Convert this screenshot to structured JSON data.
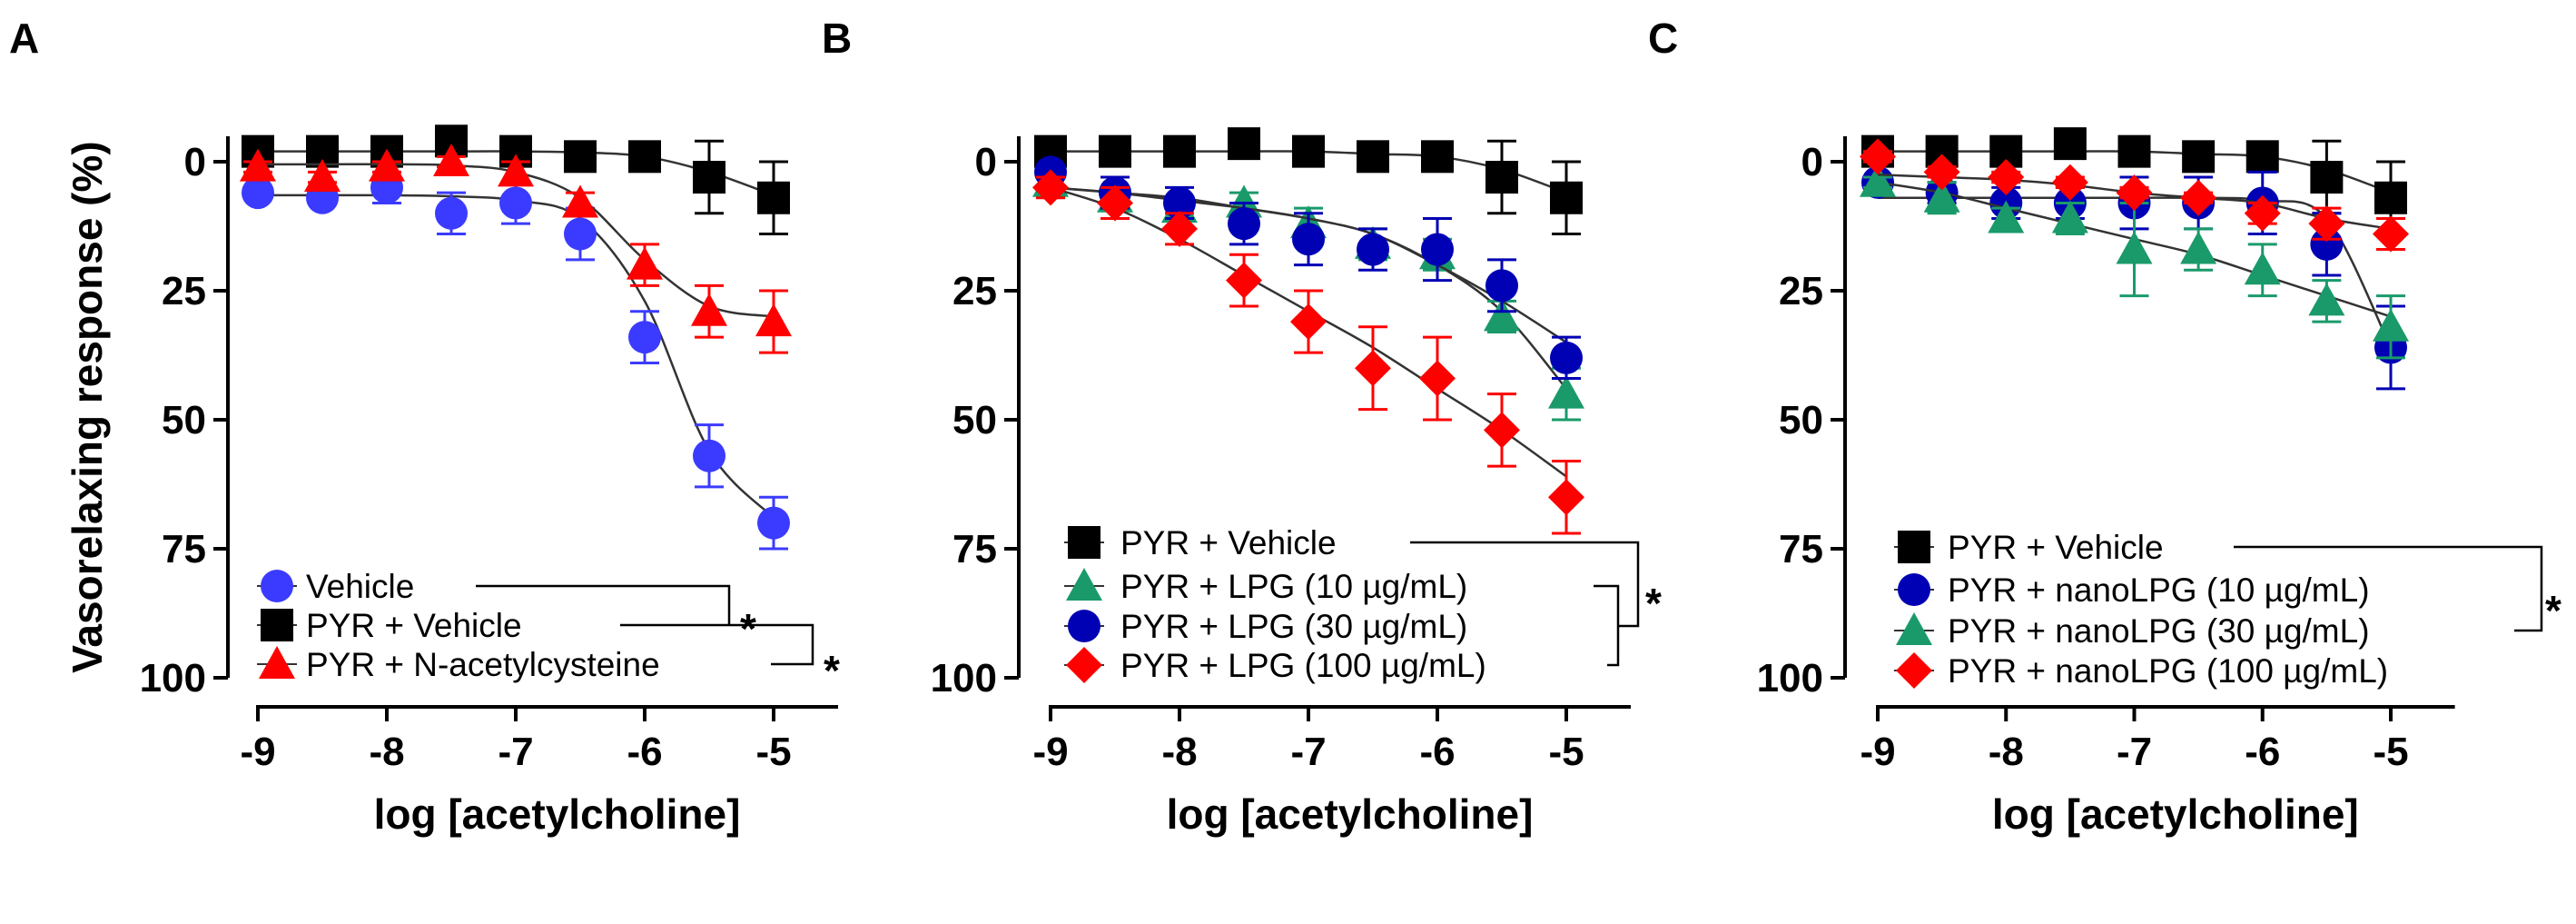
{
  "chart_data": [
    {
      "type": "line",
      "panel_label": "A",
      "xlabel": "log [acetylcholine]",
      "ylabel": "Vasorelaxing response (%)",
      "x": [
        -9,
        -8.5,
        -8,
        -7.5,
        -7,
        -6.5,
        -6,
        -5.5,
        -5
      ],
      "xticks": [
        "-9",
        "-8",
        "-7",
        "-6",
        "-5"
      ],
      "yticks": [
        "0",
        "25",
        "50",
        "75",
        "100"
      ],
      "ylim": [
        0,
        100
      ],
      "y_inverted": true,
      "legend_position": "bottom-left",
      "significance": [
        "*",
        "*"
      ],
      "series": [
        {
          "name": "Vehicle",
          "marker": "circle",
          "color": "#3b3bff",
          "values": [
            6,
            7,
            5,
            10,
            8,
            14,
            34,
            57,
            70
          ],
          "errors": [
            1,
            1,
            3,
            4,
            4,
            5,
            5,
            6,
            5
          ],
          "fit": [
            6.5,
            6.5,
            6.5,
            6.7,
            7.5,
            11,
            27,
            56,
            69
          ]
        },
        {
          "name": "PYR + Vehicle",
          "marker": "square",
          "color": "#000000",
          "values": [
            -2,
            -2,
            -2,
            -4,
            -2,
            -1,
            -1,
            3,
            7
          ],
          "errors": [
            0,
            0,
            0,
            0,
            0,
            0,
            1,
            7,
            7
          ],
          "fit": [
            -2,
            -2,
            -2,
            -2,
            -2,
            -1.8,
            -1,
            2,
            6.5
          ]
        },
        {
          "name": "PYR + N-acetylcysteine",
          "marker": "triangle",
          "color": "#ff0000",
          "values": [
            1,
            3,
            1,
            0,
            2,
            8,
            20,
            29,
            31
          ],
          "errors": [
            1,
            1,
            1,
            1,
            2,
            2,
            4,
            5,
            6
          ],
          "fit": [
            0.5,
            0.5,
            0.5,
            0.7,
            2,
            7,
            19,
            28,
            30
          ]
        }
      ]
    },
    {
      "type": "line",
      "panel_label": "B",
      "xlabel": "log [acetylcholine]",
      "x": [
        -9,
        -8.5,
        -8,
        -7.5,
        -7,
        -6.5,
        -6,
        -5.5,
        -5
      ],
      "xticks": [
        "-9",
        "-8",
        "-7",
        "-6",
        "-5"
      ],
      "yticks": [
        "0",
        "25",
        "50",
        "75",
        "100"
      ],
      "ylim": [
        0,
        100
      ],
      "y_inverted": true,
      "legend_position": "bottom-left",
      "significance": [
        "*"
      ],
      "series": [
        {
          "name": "PYR + Vehicle",
          "marker": "square",
          "color": "#000000",
          "values": [
            -2,
            -2,
            -2,
            -3.5,
            -2,
            -1,
            -1,
            3,
            7
          ],
          "errors": [
            0,
            0,
            0,
            0,
            0,
            0,
            1,
            7,
            7
          ],
          "fit": [
            -2,
            -2,
            -2,
            -2,
            -2,
            -1.5,
            -1,
            1.5,
            6
          ]
        },
        {
          "name": "PYR + LPG (10 µg/mL)",
          "marker": "triangle",
          "color": "#1a9a6a",
          "values": [
            4,
            7,
            9,
            8,
            12,
            16,
            18,
            30,
            45
          ],
          "errors": [
            1,
            2,
            2,
            2,
            3,
            3,
            3,
            3,
            5
          ],
          "fit": [
            5,
            6,
            7,
            9,
            11,
            14,
            20,
            29,
            44
          ]
        },
        {
          "name": "PYR + LPG (30 µg/mL)",
          "marker": "circle",
          "color": "#0000b4",
          "values": [
            2,
            6,
            8,
            12,
            15,
            17,
            17,
            24,
            38
          ],
          "errors": [
            1,
            3,
            3,
            4,
            5,
            4,
            6,
            5,
            4
          ],
          "fit": [
            5,
            6,
            7.5,
            9,
            11,
            14,
            20,
            27,
            35
          ]
        },
        {
          "name": "PYR + LPG (100 µg/mL)",
          "marker": "diamond",
          "color": "#ff0000",
          "values": [
            5,
            8,
            13,
            23,
            31,
            40,
            42,
            52,
            65
          ],
          "errors": [
            2,
            3,
            3,
            5,
            6,
            8,
            8,
            7,
            7
          ],
          "fit": [
            5,
            9,
            15,
            22,
            29,
            36,
            44,
            52,
            61
          ]
        }
      ]
    },
    {
      "type": "line",
      "panel_label": "C",
      "xlabel": "log [acetylcholine]",
      "x": [
        -9,
        -8.5,
        -8,
        -7.5,
        -7,
        -6.5,
        -6,
        -5.5,
        -5
      ],
      "xticks": [
        "-9",
        "-8",
        "-7",
        "-6",
        "-5"
      ],
      "yticks": [
        "0",
        "25",
        "50",
        "75",
        "100"
      ],
      "ylim": [
        0,
        100
      ],
      "y_inverted": true,
      "legend_position": "bottom-left",
      "significance": [
        "*"
      ],
      "series": [
        {
          "name": "PYR + Vehicle",
          "marker": "square",
          "color": "#000000",
          "values": [
            -2,
            -2,
            -2,
            -3.5,
            -2,
            -1,
            -1,
            3,
            7
          ],
          "errors": [
            0,
            0,
            0,
            0,
            0,
            0,
            1,
            7,
            7
          ],
          "fit": [
            -2,
            -2,
            -2,
            -2,
            -2,
            -1.5,
            -1,
            1.5,
            6
          ]
        },
        {
          "name": "PYR + nanoLPG (10 µg/mL)",
          "marker": "circle",
          "color": "#0000b4",
          "values": [
            4,
            6,
            8,
            8,
            8,
            8,
            8,
            16,
            36
          ],
          "errors": [
            1,
            2,
            3,
            3,
            5,
            5,
            6,
            6,
            8
          ],
          "fit": [
            7,
            7,
            7,
            7,
            7,
            7,
            7.5,
            11,
            36
          ]
        },
        {
          "name": "PYR + nanoLPG (30 µg/mL)",
          "marker": "triangle",
          "color": "#1a9a6a",
          "values": [
            4,
            7,
            11,
            11,
            17,
            17,
            21,
            27,
            32
          ],
          "errors": [
            1,
            3,
            2,
            3,
            9,
            4,
            5,
            4,
            6
          ],
          "fit": [
            4,
            6,
            9,
            12,
            15,
            18,
            22,
            26,
            30
          ]
        },
        {
          "name": "PYR + nanoLPG (100 µg/mL)",
          "marker": "diamond",
          "color": "#ff0000",
          "values": [
            -1,
            2,
            3,
            4,
            6,
            7,
            10,
            12,
            14
          ],
          "errors": [
            1,
            1,
            1,
            1,
            1,
            1,
            2,
            3,
            3
          ],
          "fit": [
            2.5,
            3,
            3.5,
            4.5,
            6,
            7,
            8,
            11,
            13
          ]
        }
      ]
    }
  ]
}
